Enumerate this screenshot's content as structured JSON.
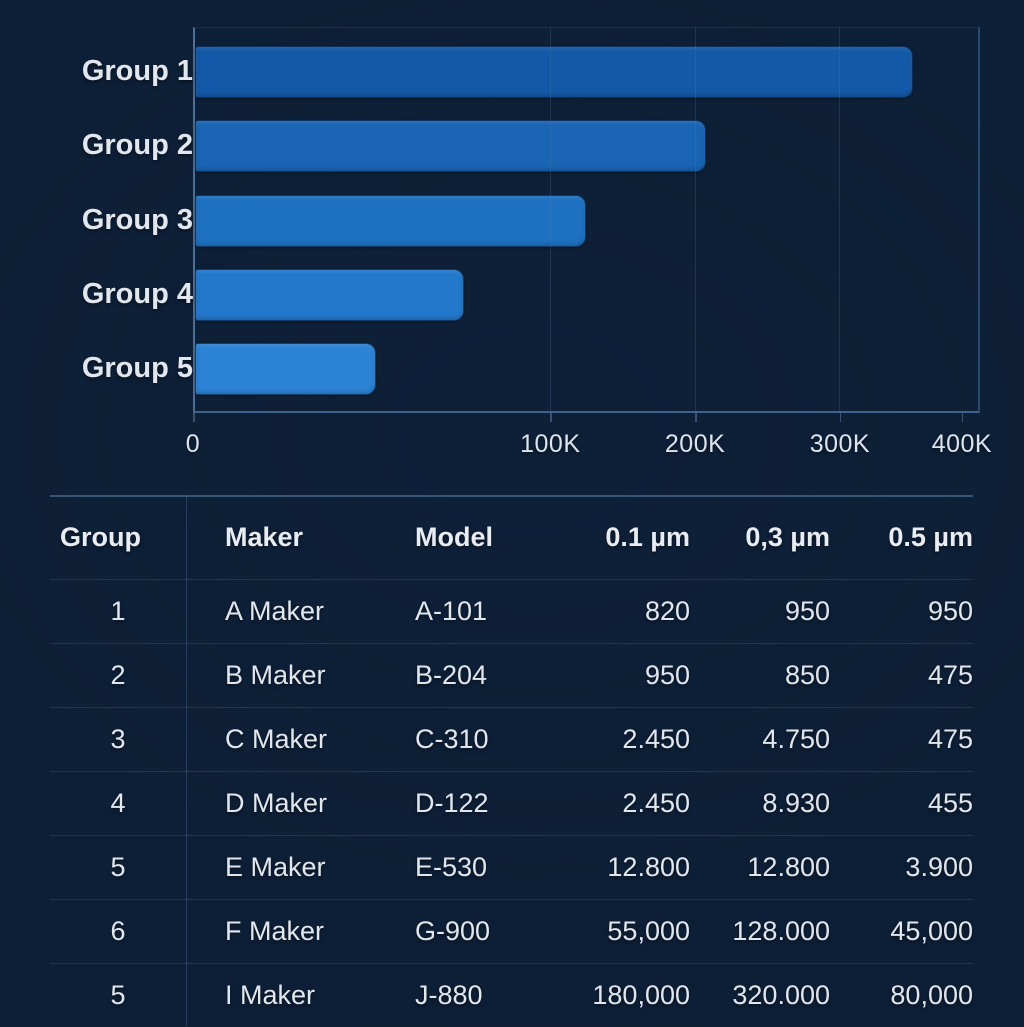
{
  "chart_data": {
    "type": "bar",
    "orientation": "horizontal",
    "title": "",
    "xlabel": "",
    "ylabel": "",
    "categories": [
      "Group 1",
      "Group 2",
      "Group 3",
      "Group 4",
      "Group 5"
    ],
    "values": [
      360000,
      205000,
      125000,
      76000,
      51000
    ],
    "xlim": [
      0,
      400000
    ],
    "x_tick_labels": [
      "0",
      "100K",
      "200K",
      "300K",
      "400K"
    ],
    "grid": true,
    "legend": false,
    "layout_hints": {
      "x_tick_pct": [
        0,
        45.4,
        63.8,
        82.2,
        97.7
      ],
      "gridline_pct": [
        45.4,
        63.8,
        82.2
      ],
      "bar_end_pct": [
        91.7,
        65.3,
        49.9,
        34.3,
        23.1
      ],
      "bar_colors": [
        "#1459a8",
        "#1a64b4",
        "#1e70c1",
        "#2378cb",
        "#2c82d5"
      ]
    }
  },
  "table": {
    "headers": [
      "Group",
      "Maker",
      "Model",
      "0.1 µm",
      "0,3 µm",
      "0.5 µm"
    ],
    "rows": [
      [
        "1",
        "A Maker",
        "A-101",
        "820",
        "950",
        "950"
      ],
      [
        "2",
        "B Maker",
        "B-204",
        "950",
        "850",
        "475"
      ],
      [
        "3",
        "C Maker",
        "C-310",
        "2.450",
        "4.750",
        "475"
      ],
      [
        "4",
        "D Maker",
        "D-122",
        "2.450",
        "8.930",
        "455"
      ],
      [
        "5",
        "E Maker",
        "E-530",
        "12.800",
        "12.800",
        "3.900"
      ],
      [
        "6",
        "F Maker",
        "G-900",
        "55,000",
        "128.000",
        "45,000"
      ],
      [
        "5",
        "I Maker",
        "J-880",
        "180,000",
        "320.000",
        "80,000"
      ]
    ]
  },
  "theme": {
    "background": "#0d1f36",
    "text": "#e4e9f0",
    "axis_line": "#4c7097",
    "gridline": "rgba(80,120,170,0.26)",
    "separator": "rgba(100,140,185,0.22)"
  }
}
